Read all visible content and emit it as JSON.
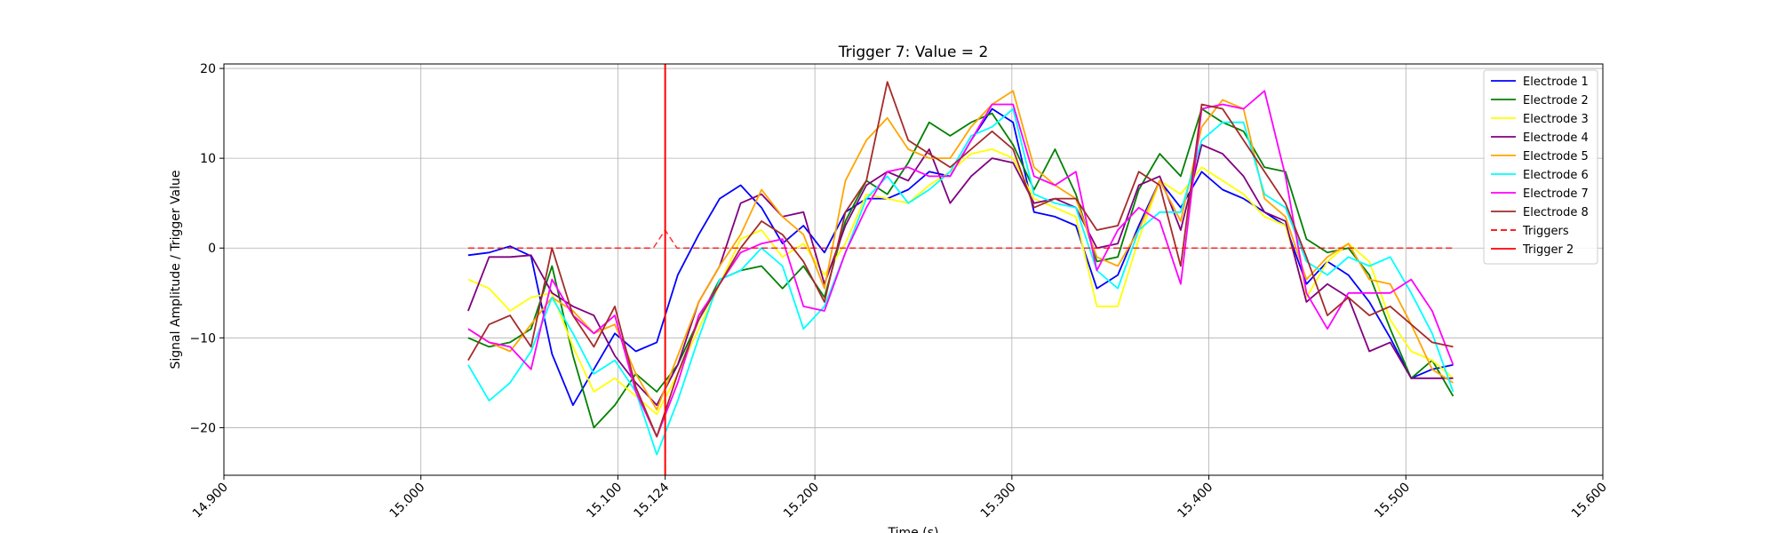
{
  "chart_data": {
    "type": "line",
    "title": "Trigger 7: Value = 2",
    "xlabel": "Time (s)",
    "ylabel": "Signal Amplitude / Trigger Value",
    "xlim": [
      14.9,
      15.6
    ],
    "ylim": [
      -25.3,
      20.5
    ],
    "x_ticks": [
      14.9,
      15.0,
      15.1,
      15.124,
      15.2,
      15.3,
      15.4,
      15.5,
      15.6
    ],
    "x_tick_labels": [
      "14.900",
      "15.000",
      "15.100",
      "15.124",
      "15.200",
      "15.300",
      "15.400",
      "15.500",
      "15.600"
    ],
    "y_ticks": [
      -20,
      -10,
      0,
      10,
      20
    ],
    "y_tick_labels": [
      "−20",
      "−10",
      "0",
      "10",
      "20"
    ],
    "grid": true,
    "legend_position": "top-right",
    "x_start": 15.024,
    "x_end": 15.524,
    "series": [
      {
        "name": "Electrode 1",
        "color": "#0000ff",
        "style": "solid",
        "values": [
          -0.8,
          -0.5,
          0.2,
          -0.9,
          -11.8,
          -17.5,
          -13.5,
          -9.5,
          -11.5,
          -10.5,
          -3.0,
          1.5,
          5.5,
          7.0,
          4.5,
          0.5,
          2.5,
          -0.5,
          4.0,
          5.5,
          5.5,
          6.5,
          8.5,
          8.0,
          12.0,
          15.5,
          14.0,
          4.0,
          3.5,
          2.5,
          -4.5,
          -3.0,
          2.5,
          7.5,
          4.5,
          8.5,
          6.5,
          5.5,
          4.0,
          2.5,
          -4.0,
          -1.5,
          -3.0,
          -6.0,
          -10.0,
          -14.5,
          -13.5,
          -13.0
        ]
      },
      {
        "name": "Electrode 2",
        "color": "#008000",
        "style": "solid",
        "values": [
          -10.0,
          -11.0,
          -10.5,
          -9.0,
          -2.0,
          -12.0,
          -20.0,
          -17.5,
          -14.0,
          -16.0,
          -13.0,
          -8.0,
          -3.5,
          -2.5,
          -2.0,
          -4.5,
          -2.0,
          -5.5,
          3.0,
          7.5,
          6.0,
          9.5,
          14.0,
          12.5,
          14.0,
          15.0,
          11.5,
          6.5,
          11.0,
          6.0,
          -1.5,
          -1.0,
          6.5,
          10.5,
          8.0,
          15.5,
          14.0,
          13.0,
          9.0,
          8.5,
          1.0,
          -0.5,
          0.0,
          -3.0,
          -9.0,
          -14.5,
          -12.5,
          -16.5
        ]
      },
      {
        "name": "Electrode 3",
        "color": "#ffff00",
        "style": "solid",
        "values": [
          -3.5,
          -4.5,
          -7.0,
          -5.5,
          -5.0,
          -11.0,
          -16.0,
          -14.5,
          -16.5,
          -18.5,
          -14.0,
          -9.0,
          -4.0,
          1.0,
          2.0,
          -1.0,
          0.5,
          -3.0,
          0.5,
          6.0,
          5.5,
          5.0,
          7.0,
          8.5,
          10.5,
          11.0,
          10.0,
          5.5,
          4.5,
          3.5,
          -6.5,
          -6.5,
          1.0,
          7.5,
          6.0,
          9.0,
          7.5,
          6.0,
          3.5,
          2.5,
          -5.5,
          -1.5,
          0.5,
          -1.5,
          -8.0,
          -11.5,
          -12.5,
          -14.5
        ]
      },
      {
        "name": "Electrode 4",
        "color": "#800080",
        "style": "solid",
        "values": [
          -7.0,
          -1.0,
          -1.0,
          -0.8,
          -5.0,
          -6.5,
          -7.5,
          -12.0,
          -15.0,
          -17.5,
          -13.0,
          -6.0,
          -2.0,
          5.0,
          6.0,
          3.5,
          4.0,
          -4.0,
          2.5,
          7.0,
          8.5,
          7.5,
          11.0,
          5.0,
          8.0,
          10.0,
          9.5,
          5.0,
          5.5,
          4.5,
          0.0,
          0.5,
          7.0,
          8.0,
          2.0,
          11.5,
          10.5,
          8.0,
          4.0,
          3.0,
          -6.0,
          -4.0,
          -5.5,
          -11.5,
          -10.5,
          -14.5,
          -14.5,
          -14.5
        ]
      },
      {
        "name": "Electrode 5",
        "color": "#ffa500",
        "style": "solid",
        "values": [
          -9.0,
          -10.5,
          -11.5,
          -8.5,
          -5.5,
          -7.0,
          -9.5,
          -8.5,
          -14.0,
          -18.0,
          -12.0,
          -6.0,
          -2.0,
          1.5,
          6.5,
          3.5,
          1.5,
          -4.5,
          7.5,
          12.0,
          14.5,
          11.0,
          10.0,
          10.0,
          13.5,
          16.0,
          17.5,
          9.0,
          7.0,
          5.5,
          -1.0,
          -2.0,
          2.0,
          7.5,
          3.0,
          13.5,
          16.5,
          15.5,
          5.5,
          3.5,
          -3.5,
          -1.0,
          0.5,
          -3.5,
          -4.0,
          -8.5,
          -13.5,
          -15.0
        ]
      },
      {
        "name": "Electrode 6",
        "color": "#00ffff",
        "style": "solid",
        "values": [
          -13.0,
          -17.0,
          -15.0,
          -11.5,
          -5.5,
          -9.5,
          -14.0,
          -12.5,
          -16.0,
          -23.0,
          -17.0,
          -10.0,
          -3.5,
          -2.5,
          0.0,
          -2.0,
          -9.0,
          -6.5,
          -0.5,
          5.5,
          8.0,
          5.0,
          6.5,
          8.5,
          12.5,
          13.5,
          15.5,
          6.0,
          5.0,
          4.5,
          -2.5,
          -4.5,
          2.0,
          4.0,
          4.0,
          12.0,
          14.0,
          14.0,
          6.0,
          4.5,
          -1.5,
          -3.0,
          -1.0,
          -2.0,
          -1.0,
          -5.0,
          -9.5,
          -16.0
        ]
      },
      {
        "name": "Electrode 7",
        "color": "#ff00ff",
        "style": "solid",
        "values": [
          -9.0,
          -10.5,
          -11.0,
          -13.5,
          -3.5,
          -7.5,
          -9.5,
          -7.5,
          -16.0,
          -21.0,
          -15.0,
          -7.5,
          -4.0,
          -0.5,
          0.5,
          1.0,
          -6.5,
          -7.0,
          -0.5,
          4.5,
          8.5,
          9.0,
          8.0,
          8.0,
          12.0,
          16.0,
          16.0,
          8.0,
          7.0,
          8.5,
          -2.5,
          2.0,
          4.5,
          3.0,
          -4.0,
          15.5,
          16.0,
          15.5,
          17.5,
          8.0,
          -5.0,
          -9.0,
          -5.0,
          -5.0,
          -5.0,
          -3.5,
          -7.0,
          -13.0
        ]
      },
      {
        "name": "Electrode 8",
        "color": "#a52a2a",
        "style": "solid",
        "values": [
          -12.5,
          -8.5,
          -7.5,
          -11.0,
          0.0,
          -7.5,
          -11.0,
          -6.5,
          -15.5,
          -21.0,
          -14.0,
          -8.0,
          -4.0,
          0.0,
          3.0,
          1.5,
          -1.5,
          -6.0,
          4.0,
          7.5,
          18.5,
          12.0,
          10.5,
          9.0,
          11.0,
          13.0,
          11.0,
          4.5,
          5.5,
          5.5,
          2.0,
          2.5,
          8.5,
          7.0,
          -2.0,
          16.0,
          15.5,
          12.0,
          8.5,
          5.0,
          -1.0,
          -7.5,
          -5.5,
          -7.5,
          -6.5,
          -8.5,
          -10.5,
          -11.0
        ]
      },
      {
        "name": "Triggers",
        "color": "#ff0000",
        "style": "dashed",
        "x": [
          15.024,
          15.11,
          15.118,
          15.124,
          15.13,
          15.138,
          15.524
        ],
        "values": [
          0,
          0,
          0,
          2,
          0,
          0,
          0
        ]
      },
      {
        "name": "Trigger 2",
        "color": "#ff0000",
        "style": "vline",
        "x_value": 15.124
      }
    ]
  }
}
